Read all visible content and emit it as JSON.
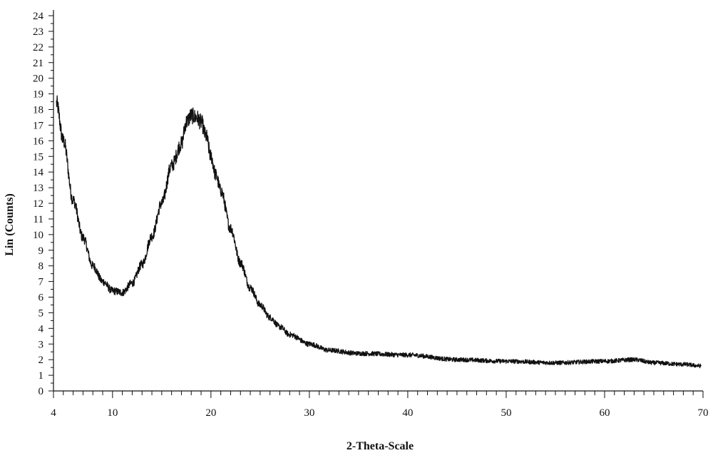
{
  "chart_data": {
    "type": "line",
    "title": "",
    "xlabel": "2-Theta-Scale",
    "ylabel": "Lin (Counts)",
    "xlim": [
      4,
      70
    ],
    "ylim": [
      0,
      24
    ],
    "x_ticks": [
      4,
      10,
      20,
      30,
      40,
      50,
      60,
      70
    ],
    "x_tick_labels": [
      "4",
      "10",
      "20",
      "30",
      "40",
      "50",
      "60",
      "70"
    ],
    "y_ticks": [
      0,
      1,
      2,
      3,
      4,
      5,
      6,
      7,
      8,
      9,
      10,
      11,
      12,
      13,
      14,
      15,
      16,
      17,
      18,
      19,
      20,
      21,
      22,
      23,
      24
    ],
    "y_tick_labels": [
      "0",
      "1",
      "2",
      "3",
      "4",
      "5",
      "6",
      "7",
      "8",
      "9",
      "10",
      "11",
      "12",
      "13",
      "14",
      "15",
      "16",
      "17",
      "18",
      "19",
      "20",
      "21",
      "22",
      "23",
      "24"
    ],
    "grid": false,
    "series": [
      {
        "color": "#111111",
        "x": [
          4.3,
          5,
          6,
          7,
          8,
          9,
          10,
          11,
          12,
          13,
          14,
          15,
          16,
          17,
          17.5,
          18,
          18.5,
          19,
          19.5,
          20,
          20.5,
          21,
          22,
          23,
          24,
          25,
          26,
          27,
          28,
          30,
          32,
          35,
          40,
          45,
          50,
          55,
          60,
          63,
          65,
          68,
          69.8
        ],
        "y": [
          18.4,
          16.0,
          12.2,
          9.8,
          8.0,
          7.0,
          6.4,
          6.3,
          6.9,
          8.1,
          9.9,
          12.0,
          14.4,
          15.8,
          17.2,
          17.6,
          17.5,
          17.2,
          16.3,
          15.0,
          13.8,
          12.8,
          10.4,
          8.2,
          6.6,
          5.5,
          4.7,
          4.1,
          3.6,
          3.0,
          2.6,
          2.4,
          2.3,
          2.0,
          1.9,
          1.8,
          1.9,
          2.0,
          1.8,
          1.7,
          1.6
        ]
      }
    ]
  }
}
